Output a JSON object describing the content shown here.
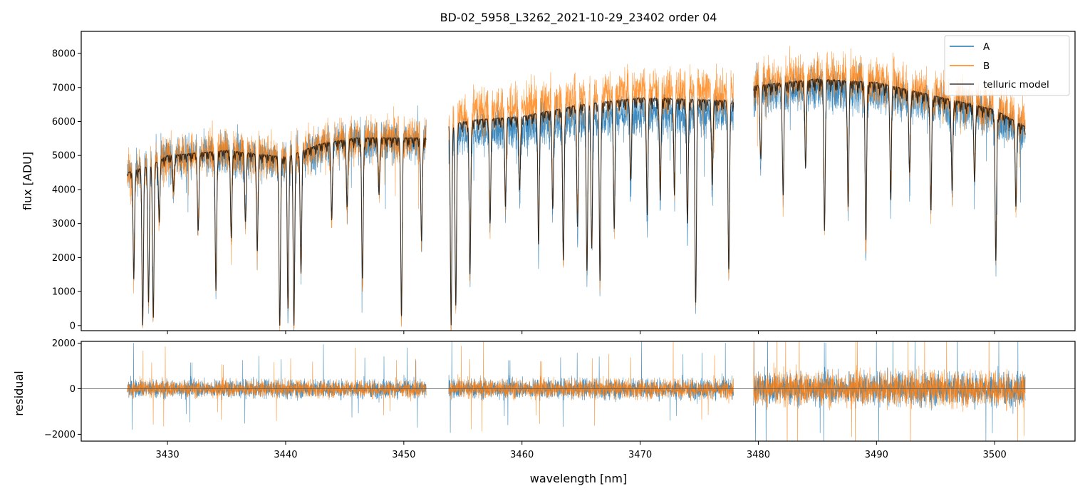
{
  "chart_data": [
    {
      "type": "line",
      "title": "BD-02_5958_L3262_2021-10-29_23402  order 04",
      "xlabel": "",
      "ylabel": "flux [ADU]",
      "xlim": [
        3422.7,
        3506.8
      ],
      "ylim": [
        -150,
        8650
      ],
      "yticks": [
        0,
        1000,
        2000,
        3000,
        4000,
        5000,
        6000,
        7000,
        8000
      ],
      "ytick_labels": [
        "0",
        "1000",
        "2000",
        "3000",
        "4000",
        "5000",
        "6000",
        "7000",
        "8000"
      ],
      "legend_position": "top-right",
      "segments": [
        [
          3426.6,
          3451.9
        ],
        [
          3453.8,
          3477.9
        ],
        [
          3479.6,
          3502.6
        ]
      ],
      "series": [
        {
          "name": "A",
          "color": "#1f77b4",
          "continuum": [
            [
              3426.6,
              4500
            ],
            [
              3428.5,
              4700
            ],
            [
              3430.0,
              5000
            ],
            [
              3435.0,
              5100
            ],
            [
              3440.0,
              4900
            ],
            [
              3443.0,
              5300
            ],
            [
              3446.0,
              5500
            ],
            [
              3451.9,
              5500
            ],
            [
              3453.8,
              5600
            ],
            [
              3456.0,
              5750
            ],
            [
              3460.0,
              5850
            ],
            [
              3465.0,
              6150
            ],
            [
              3470.0,
              6300
            ],
            [
              3475.0,
              6300
            ],
            [
              3477.9,
              6300
            ],
            [
              3479.6,
              6900
            ],
            [
              3485.0,
              7050
            ],
            [
              3490.0,
              6950
            ],
            [
              3495.0,
              6600
            ],
            [
              3500.0,
              6200
            ],
            [
              3502.6,
              5700
            ]
          ],
          "noise": 420
        },
        {
          "name": "B",
          "color": "#ff7f0e",
          "continuum": [
            [
              3426.6,
              4500
            ],
            [
              3428.5,
              4700
            ],
            [
              3430.0,
              5000
            ],
            [
              3435.0,
              5200
            ],
            [
              3440.0,
              5000
            ],
            [
              3443.0,
              5400
            ],
            [
              3446.0,
              5550
            ],
            [
              3451.9,
              5550
            ],
            [
              3453.8,
              6200
            ],
            [
              3456.0,
              6350
            ],
            [
              3460.0,
              6500
            ],
            [
              3465.0,
              6800
            ],
            [
              3470.0,
              7050
            ],
            [
              3475.0,
              7000
            ],
            [
              3477.9,
              6900
            ],
            [
              3479.6,
              7150
            ],
            [
              3485.0,
              7450
            ],
            [
              3490.0,
              7300
            ],
            [
              3495.0,
              6900
            ],
            [
              3500.0,
              6500
            ],
            [
              3502.6,
              6000
            ]
          ],
          "noise": 460
        },
        {
          "name": "telluric model",
          "color": "#000000",
          "continuum": [
            [
              3426.6,
              4500
            ],
            [
              3428.5,
              4700
            ],
            [
              3430.0,
              5000
            ],
            [
              3435.0,
              5150
            ],
            [
              3440.0,
              4950
            ],
            [
              3443.0,
              5350
            ],
            [
              3446.0,
              5520
            ],
            [
              3451.9,
              5520
            ],
            [
              3453.8,
              5900
            ],
            [
              3456.0,
              6050
            ],
            [
              3460.0,
              6150
            ],
            [
              3465.0,
              6500
            ],
            [
              3470.0,
              6700
            ],
            [
              3475.0,
              6650
            ],
            [
              3477.9,
              6600
            ],
            [
              3479.6,
              7050
            ],
            [
              3485.0,
              7250
            ],
            [
              3490.0,
              7150
            ],
            [
              3495.0,
              6750
            ],
            [
              3500.0,
              6350
            ],
            [
              3502.6,
              5850
            ]
          ]
        }
      ],
      "absorption_lines": [
        [
          3427.15,
          0.7
        ],
        [
          3427.9,
          1.0
        ],
        [
          3428.4,
          0.85
        ],
        [
          3428.8,
          0.95
        ],
        [
          3429.3,
          0.35
        ],
        [
          3430.5,
          0.2
        ],
        [
          3432.6,
          0.45
        ],
        [
          3434.1,
          0.8
        ],
        [
          3435.4,
          0.5
        ],
        [
          3436.6,
          0.4
        ],
        [
          3437.6,
          0.55
        ],
        [
          3439.5,
          1.0
        ],
        [
          3440.2,
          0.9
        ],
        [
          3440.7,
          1.0
        ],
        [
          3441.3,
          0.7
        ],
        [
          3443.9,
          0.4
        ],
        [
          3445.2,
          0.35
        ],
        [
          3446.5,
          0.75
        ],
        [
          3447.9,
          0.3
        ],
        [
          3449.8,
          0.95
        ],
        [
          3451.5,
          0.55
        ],
        [
          3454.0,
          1.0
        ],
        [
          3454.4,
          0.9
        ],
        [
          3455.6,
          0.75
        ],
        [
          3457.3,
          0.5
        ],
        [
          3458.6,
          0.4
        ],
        [
          3459.8,
          0.35
        ],
        [
          3461.4,
          0.6
        ],
        [
          3462.6,
          0.45
        ],
        [
          3463.5,
          0.7
        ],
        [
          3464.7,
          0.55
        ],
        [
          3465.5,
          0.75
        ],
        [
          3465.9,
          0.65
        ],
        [
          3466.6,
          0.8
        ],
        [
          3467.8,
          0.55
        ],
        [
          3469.2,
          0.35
        ],
        [
          3470.6,
          0.5
        ],
        [
          3471.7,
          0.45
        ],
        [
          3472.9,
          0.4
        ],
        [
          3474.0,
          0.55
        ],
        [
          3474.7,
          0.9
        ],
        [
          3476.1,
          0.35
        ],
        [
          3477.5,
          0.75
        ],
        [
          3480.2,
          0.3
        ],
        [
          3482.1,
          0.45
        ],
        [
          3484.0,
          0.35
        ],
        [
          3485.6,
          0.6
        ],
        [
          3487.6,
          0.5
        ],
        [
          3489.1,
          0.65
        ],
        [
          3491.2,
          0.45
        ],
        [
          3492.8,
          0.35
        ],
        [
          3494.6,
          0.5
        ],
        [
          3496.4,
          0.4
        ],
        [
          3498.3,
          0.35
        ],
        [
          3500.1,
          0.7
        ],
        [
          3501.8,
          0.4
        ]
      ]
    },
    {
      "type": "line",
      "xlabel": "wavelength [nm]",
      "ylabel": "residual",
      "xlim": [
        3422.7,
        3506.8
      ],
      "ylim": [
        -2300,
        2080
      ],
      "xticks": [
        3430,
        3440,
        3450,
        3460,
        3470,
        3480,
        3490,
        3500
      ],
      "xtick_labels": [
        "3430",
        "3440",
        "3450",
        "3460",
        "3470",
        "3480",
        "3490",
        "3500"
      ],
      "yticks": [
        -2000,
        0,
        2000
      ],
      "ytick_labels": [
        "−2000",
        "0",
        "2000"
      ],
      "zero_line": true,
      "series": [
        {
          "name": "A",
          "color": "#1f77b4",
          "amplitude": [
            [
              3426.6,
              520
            ],
            [
              3451.9,
              520
            ],
            [
              3453.8,
              560
            ],
            [
              3477.9,
              580
            ],
            [
              3479.6,
              900
            ],
            [
              3502.6,
              950
            ]
          ]
        },
        {
          "name": "B",
          "color": "#ff7f0e",
          "amplitude": [
            [
              3426.6,
              480
            ],
            [
              3451.9,
              480
            ],
            [
              3453.8,
              540
            ],
            [
              3477.9,
              560
            ],
            [
              3479.6,
              980
            ],
            [
              3502.6,
              1000
            ]
          ]
        }
      ]
    }
  ],
  "legend": {
    "items": [
      {
        "label": "A",
        "color": "#1f77b4"
      },
      {
        "label": "B",
        "color": "#ff7f0e"
      },
      {
        "label": "telluric model",
        "color": "#3a3a3a"
      }
    ]
  }
}
